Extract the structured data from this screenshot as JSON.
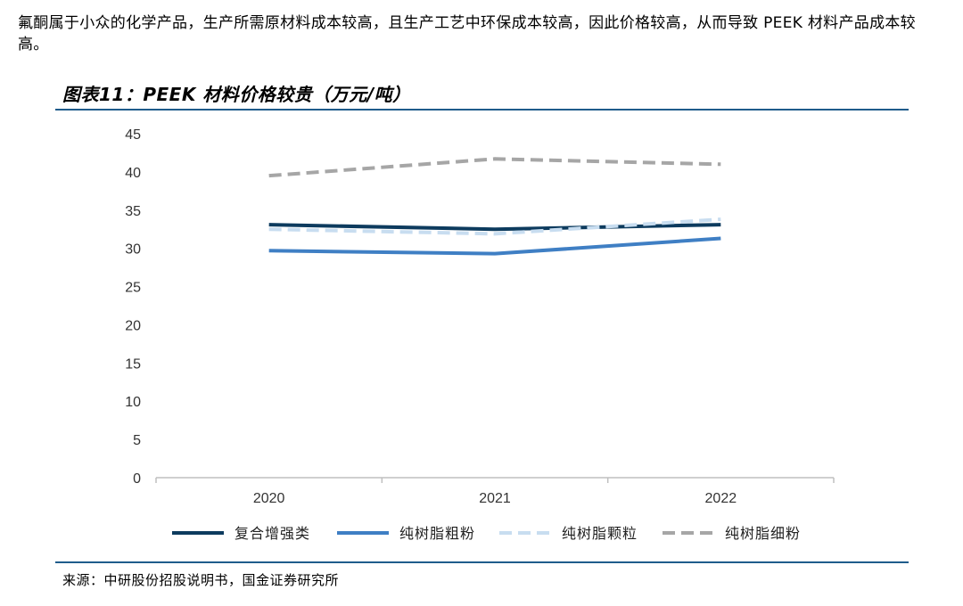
{
  "intro_text": "氟酮属于小众的化学产品，生产所需原材料成本较高，且生产工艺中环保成本较高，因此价格较高，从而导致 PEEK 材料产品成本较高。",
  "figure_title": "图表11：PEEK 材料价格较贵（万元/吨）",
  "source_text": "来源：中研股份招股说明书，国金证券研究所",
  "chart_data": {
    "type": "line",
    "title": "",
    "xlabel": "",
    "ylabel": "",
    "categories": [
      "2020",
      "2021",
      "2022"
    ],
    "ylim": [
      0,
      45
    ],
    "yticks": [
      0,
      5,
      10,
      15,
      20,
      25,
      30,
      35,
      40,
      45
    ],
    "grid": false,
    "legend_position": "bottom",
    "series": [
      {
        "name": "复合增强类",
        "values": [
          33.1,
          32.5,
          33.1
        ],
        "color": "#0d3b5e",
        "dash": "solid"
      },
      {
        "name": "纯树脂粗粉",
        "values": [
          29.7,
          29.3,
          31.3
        ],
        "color": "#3f7fc4",
        "dash": "solid"
      },
      {
        "name": "纯树脂颗粒",
        "values": [
          32.5,
          31.9,
          33.8
        ],
        "color": "#c8ddf0",
        "dash": "dashed"
      },
      {
        "name": "纯树脂细粉",
        "values": [
          39.5,
          41.7,
          41.0
        ],
        "color": "#a6a6a6",
        "dash": "dashed"
      }
    ]
  }
}
